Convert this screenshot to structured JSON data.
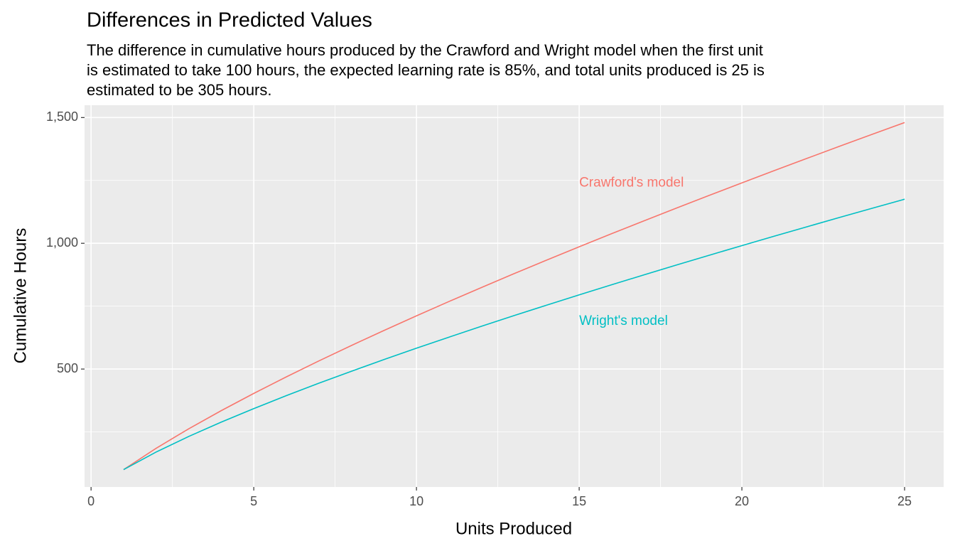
{
  "chart_data": {
    "type": "line",
    "title": "Differences in Predicted Values",
    "subtitle": [
      "The difference in cumulative hours produced by the Crawford and Wright model when the first unit",
      "is estimated to take 100 hours, the expected learning rate is 85%, and total units produced is 25 is",
      "estimated to be 305 hours."
    ],
    "x_label": "Units Produced",
    "y_label": "Cumulative Hours",
    "x": [
      1,
      2,
      3,
      4,
      5,
      6,
      7,
      8,
      9,
      10,
      11,
      12,
      13,
      14,
      15,
      16,
      17,
      18,
      19,
      20,
      21,
      22,
      23,
      24,
      25
    ],
    "series": [
      {
        "name": "Crawford's model",
        "color": "#F8766D",
        "label_at": [
          15,
          1240
        ],
        "values": [
          100,
          185,
          262.3,
          334.5,
          403.1,
          468.8,
          532.2,
          593.6,
          653.3,
          711.6,
          768.6,
          824.4,
          879.3,
          933.1,
          986.1,
          1038.3,
          1089.8,
          1140.5,
          1190.7,
          1240.2,
          1289.2,
          1337.6,
          1385.6,
          1433.0,
          1480.0
        ]
      },
      {
        "name": "Wright's model",
        "color": "#00BFC4",
        "label_at": [
          15,
          690
        ],
        "values": [
          100,
          170,
          231.9,
          289,
          342.8,
          394.2,
          443.6,
          491.2,
          537.6,
          582.8,
          626.9,
          670.1,
          712.5,
          754.0,
          794.9,
          835.1,
          874.9,
          913.9,
          952.6,
          990.7,
          1028.5,
          1065.7,
          1102.8,
          1139.0,
          1175.3
        ]
      }
    ],
    "xlim": [
      -0.2,
      26.2
    ],
    "xticks": [
      0,
      5,
      10,
      15,
      20,
      25
    ],
    "ylim": [
      31,
      1549
    ],
    "yticks": [
      500,
      {
        "value": 1000,
        "label": "1,000"
      },
      {
        "value": 1500,
        "label": "1,500"
      }
    ],
    "grid": true,
    "minor_grid": true
  }
}
